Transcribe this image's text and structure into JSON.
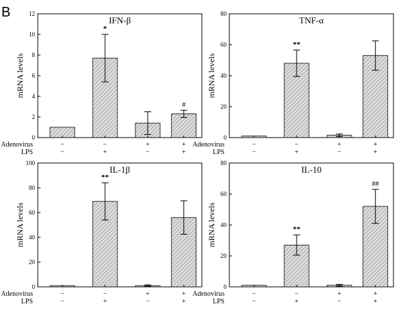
{
  "figure_label": "B",
  "colors": {
    "bar_fill": "#dcdcdc",
    "hatch": "#7a7a7a",
    "axis": "#000000"
  },
  "chart_data": [
    {
      "type": "bar",
      "title": "IFN-β",
      "ylabel": "mRNA levels",
      "ylim": [
        0,
        12
      ],
      "yticks": [
        0,
        2,
        4,
        6,
        8,
        10,
        12
      ],
      "values": [
        1.0,
        7.7,
        1.4,
        2.3
      ],
      "errors": [
        0.0,
        2.3,
        1.1,
        0.35
      ],
      "annotations": [
        "",
        "*",
        "",
        "#"
      ],
      "conditions": [
        {
          "label": "Adenovirus",
          "signs": [
            "−",
            "−",
            "+",
            "+"
          ]
        },
        {
          "label": "LPS",
          "signs": [
            "−",
            "+",
            "−",
            "+"
          ]
        }
      ]
    },
    {
      "type": "bar",
      "title": "TNF-α",
      "ylabel": "mRNA levels",
      "ylim": [
        0,
        80
      ],
      "yticks": [
        0,
        20,
        40,
        60,
        80
      ],
      "values": [
        1.0,
        48.0,
        1.5,
        53.0
      ],
      "errors": [
        0.0,
        8.5,
        0.8,
        9.5
      ],
      "annotations": [
        "",
        "**",
        "",
        ""
      ],
      "conditions": [
        {
          "label": "Adenovirus",
          "signs": [
            "−",
            "−",
            "+",
            "+"
          ]
        },
        {
          "label": "LPS",
          "signs": [
            "−",
            "+",
            "−",
            "+"
          ]
        }
      ]
    },
    {
      "type": "bar",
      "title": "IL-1β",
      "ylabel": "mRNA levels",
      "ylim": [
        0,
        100
      ],
      "yticks": [
        0,
        20,
        40,
        60,
        80,
        100
      ],
      "values": [
        1.0,
        69.0,
        1.0,
        56.0
      ],
      "errors": [
        0.0,
        15.0,
        0.6,
        13.5
      ],
      "annotations": [
        "",
        "**",
        "",
        ""
      ],
      "conditions": [
        {
          "label": "Adenovirus",
          "signs": [
            "−",
            "−",
            "+",
            "+"
          ]
        },
        {
          "label": "LPS",
          "signs": [
            "−",
            "+",
            "−",
            "+"
          ]
        }
      ]
    },
    {
      "type": "bar",
      "title": "IL-10",
      "ylabel": "mRNA levels",
      "ylim": [
        0,
        80
      ],
      "yticks": [
        0,
        20,
        40,
        60,
        80
      ],
      "values": [
        1.0,
        27.0,
        1.0,
        52.0
      ],
      "errors": [
        0.0,
        6.5,
        0.6,
        11.0
      ],
      "annotations": [
        "",
        "**",
        "",
        "##"
      ],
      "conditions": [
        {
          "label": "Adenovirus",
          "signs": [
            "−",
            "−",
            "+",
            "+"
          ]
        },
        {
          "label": "LPS",
          "signs": [
            "−",
            "+",
            "−",
            "+"
          ]
        }
      ]
    }
  ]
}
